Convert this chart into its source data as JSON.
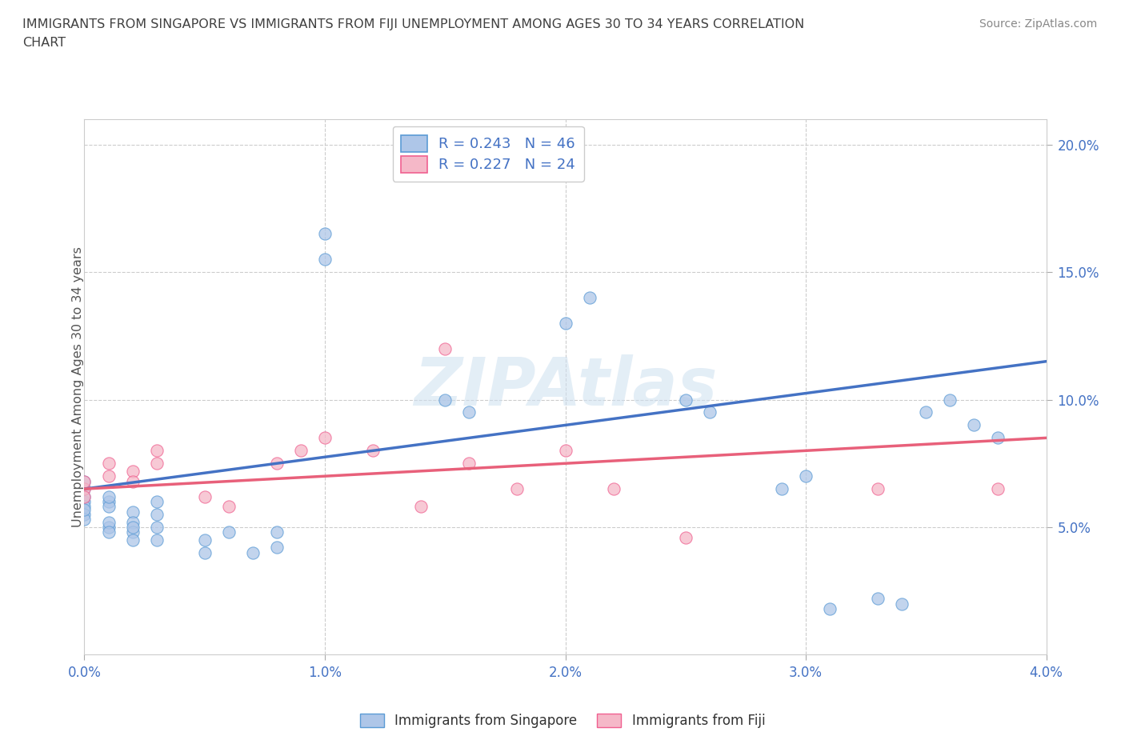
{
  "title_line1": "IMMIGRANTS FROM SINGAPORE VS IMMIGRANTS FROM FIJI UNEMPLOYMENT AMONG AGES 30 TO 34 YEARS CORRELATION",
  "title_line2": "CHART",
  "source": "Source: ZipAtlas.com",
  "ylabel": "Unemployment Among Ages 30 to 34 years",
  "xlim": [
    0.0,
    0.04
  ],
  "ylim": [
    0.0,
    0.21
  ],
  "xticks": [
    0.0,
    0.01,
    0.02,
    0.03,
    0.04
  ],
  "yticks": [
    0.05,
    0.1,
    0.15,
    0.2
  ],
  "xtick_labels": [
    "0.0%",
    "1.0%",
    "2.0%",
    "3.0%",
    "4.0%"
  ],
  "ytick_labels": [
    "5.0%",
    "10.0%",
    "15.0%",
    "20.0%"
  ],
  "singapore_color": "#aec6e8",
  "fiji_color": "#f5b8c8",
  "singapore_edge_color": "#5b9bd5",
  "fiji_edge_color": "#f06090",
  "singapore_line_color": "#4472c4",
  "fiji_line_color": "#e8607a",
  "singapore_R": 0.243,
  "singapore_N": 46,
  "fiji_R": 0.227,
  "fiji_N": 24,
  "singapore_scatter_x": [
    0.0,
    0.0,
    0.0,
    0.0,
    0.0,
    0.0,
    0.0,
    0.0,
    0.001,
    0.001,
    0.001,
    0.001,
    0.001,
    0.001,
    0.002,
    0.002,
    0.002,
    0.002,
    0.002,
    0.003,
    0.003,
    0.003,
    0.003,
    0.005,
    0.005,
    0.006,
    0.007,
    0.008,
    0.008,
    0.01,
    0.01,
    0.015,
    0.016,
    0.02,
    0.021,
    0.025,
    0.026,
    0.029,
    0.03,
    0.031,
    0.033,
    0.034,
    0.035,
    0.036,
    0.037,
    0.038
  ],
  "singapore_scatter_y": [
    0.06,
    0.062,
    0.058,
    0.055,
    0.065,
    0.068,
    0.053,
    0.057,
    0.06,
    0.058,
    0.062,
    0.05,
    0.052,
    0.048,
    0.056,
    0.052,
    0.048,
    0.045,
    0.05,
    0.06,
    0.055,
    0.05,
    0.045,
    0.04,
    0.045,
    0.048,
    0.04,
    0.048,
    0.042,
    0.165,
    0.155,
    0.1,
    0.095,
    0.13,
    0.14,
    0.1,
    0.095,
    0.065,
    0.07,
    0.018,
    0.022,
    0.02,
    0.095,
    0.1,
    0.09,
    0.085
  ],
  "fiji_scatter_x": [
    0.0,
    0.0,
    0.0,
    0.001,
    0.001,
    0.002,
    0.002,
    0.003,
    0.003,
    0.005,
    0.006,
    0.008,
    0.009,
    0.01,
    0.012,
    0.014,
    0.015,
    0.016,
    0.018,
    0.02,
    0.022,
    0.025,
    0.033,
    0.038
  ],
  "fiji_scatter_y": [
    0.065,
    0.068,
    0.062,
    0.075,
    0.07,
    0.072,
    0.068,
    0.08,
    0.075,
    0.062,
    0.058,
    0.075,
    0.08,
    0.085,
    0.08,
    0.058,
    0.12,
    0.075,
    0.065,
    0.08,
    0.065,
    0.046,
    0.065,
    0.065
  ],
  "watermark": "ZIPAtlas",
  "background_color": "#ffffff",
  "grid_color": "#cccccc",
  "title_color": "#404040",
  "tick_label_color": "#4472c4",
  "source_color": "#888888"
}
